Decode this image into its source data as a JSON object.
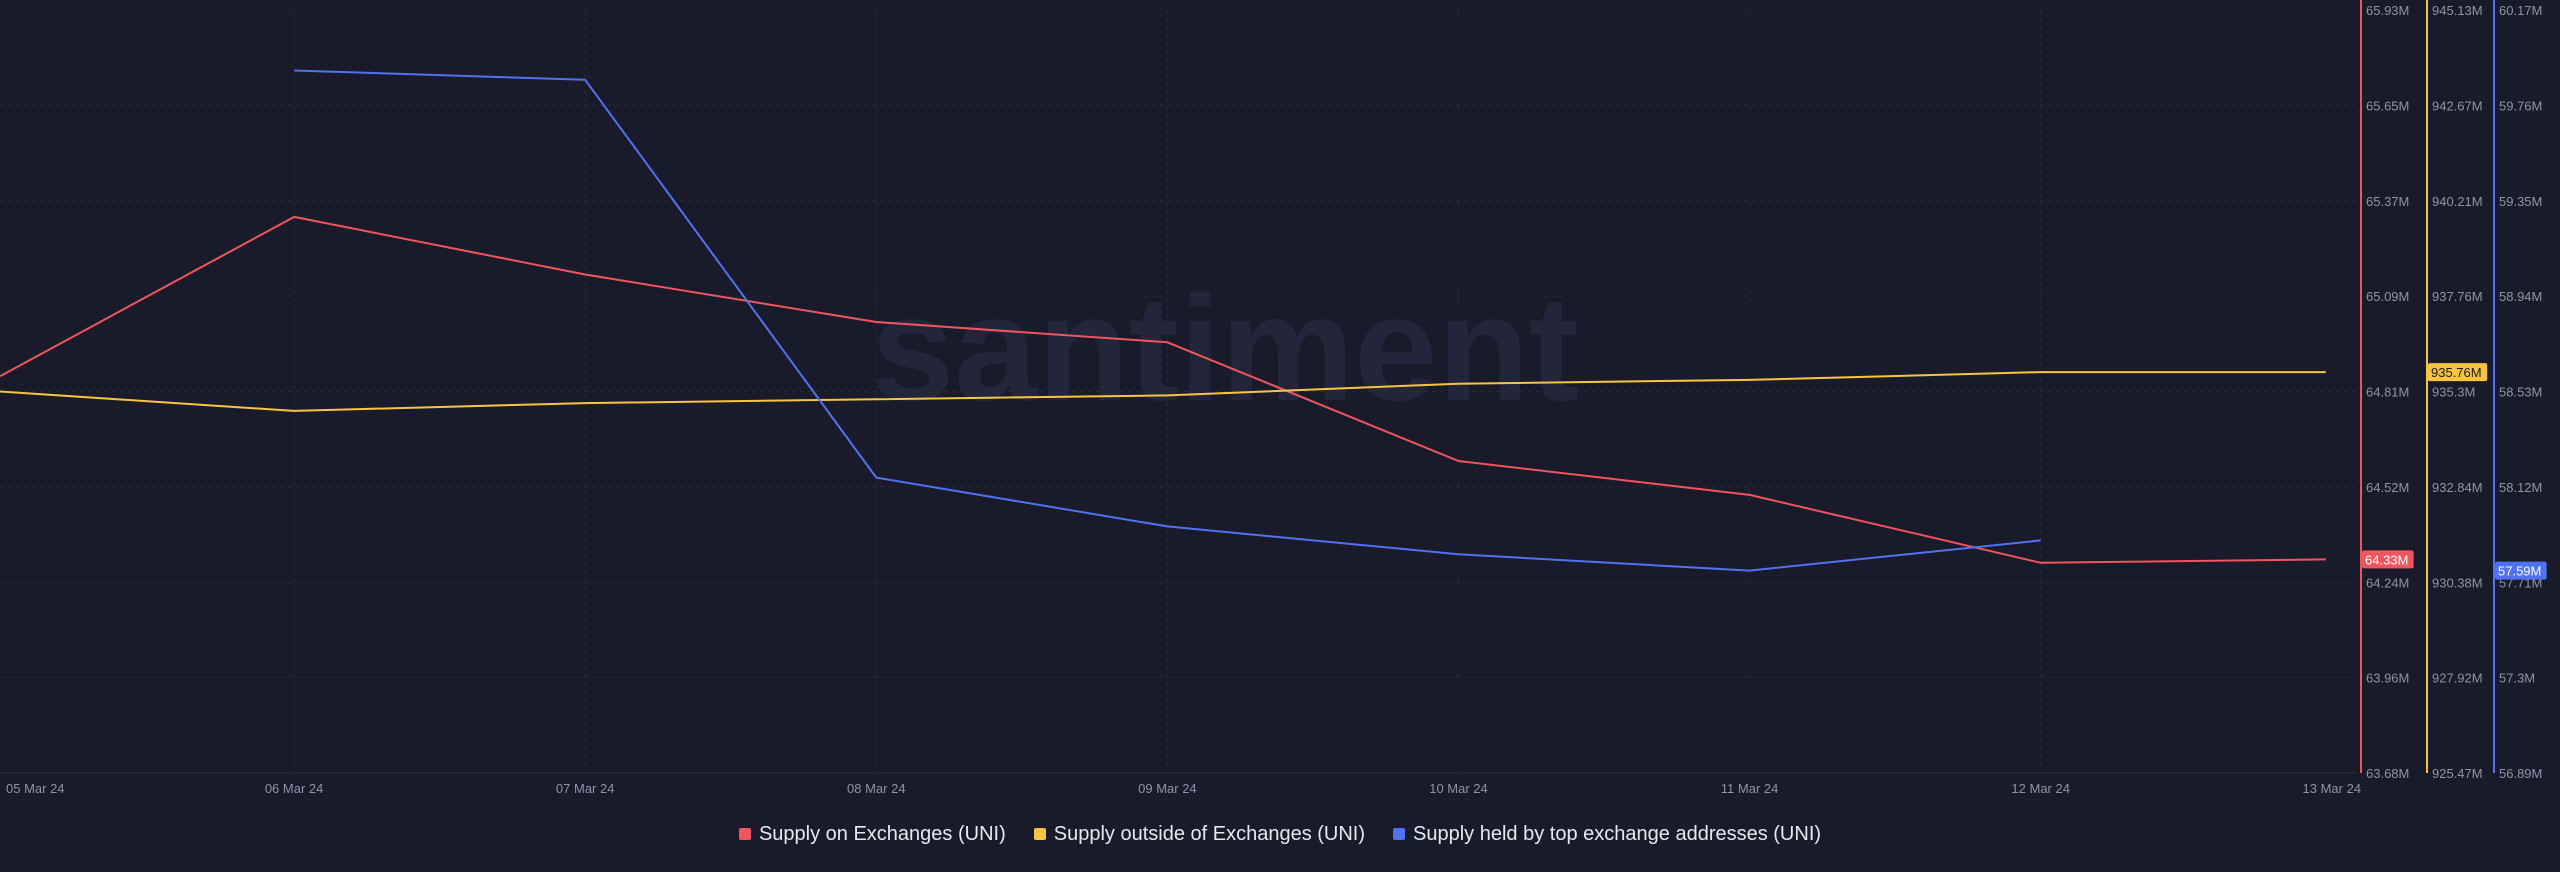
{
  "watermark": "santiment",
  "colors": {
    "background": "#191b2a",
    "grid": "#262a3b",
    "tick_text": "#8e93a8",
    "badge_text_dark": "#1b1b1b",
    "badge_text_light": "#ffffff"
  },
  "chart_data": {
    "type": "line",
    "grid": true,
    "legend_position": "bottom-center",
    "categories": [
      "05 Mar 24",
      "06 Mar 24",
      "07 Mar 24",
      "08 Mar 24",
      "09 Mar 24",
      "10 Mar 24",
      "11 Mar 24",
      "12 Mar 24",
      "13 Mar 24"
    ],
    "axes": [
      {
        "id": "supply_on",
        "color": "#f0555f",
        "ylim": [
          63.68,
          65.93
        ],
        "ticks": [
          "65.93M",
          "65.65M",
          "65.37M",
          "65.09M",
          "64.81M",
          "64.52M",
          "64.24M",
          "63.96M",
          "63.68M"
        ],
        "tick_values": [
          65.93,
          65.65,
          65.37,
          65.09,
          64.81,
          64.52,
          64.24,
          63.96,
          63.68
        ]
      },
      {
        "id": "supply_outside",
        "color": "#f5c542",
        "ylim": [
          925.47,
          945.13
        ],
        "ticks": [
          "945.13M",
          "942.67M",
          "940.21M",
          "937.76M",
          "935.3M",
          "932.84M",
          "930.38M",
          "927.92M",
          "925.47M"
        ],
        "tick_values": [
          945.13,
          942.67,
          940.21,
          937.76,
          935.3,
          932.84,
          930.38,
          927.92,
          925.47
        ]
      },
      {
        "id": "supply_top",
        "color": "#5072f0",
        "ylim": [
          56.89,
          60.17
        ],
        "ticks": [
          "60.17M",
          "59.76M",
          "59.35M",
          "58.94M",
          "58.53M",
          "58.12M",
          "57.71M",
          "57.3M",
          "56.89M"
        ],
        "tick_values": [
          60.17,
          59.76,
          59.35,
          58.94,
          58.53,
          58.12,
          57.71,
          57.3,
          56.89
        ]
      }
    ],
    "series": [
      {
        "name": "Supply on Exchanges (UNI)",
        "axis": 0,
        "color": "#f0555f",
        "x": [
          -0.02,
          1,
          2,
          3,
          4,
          5,
          6,
          7,
          8
        ],
        "values": [
          64.85,
          65.32,
          65.15,
          65.01,
          64.95,
          64.6,
          64.5,
          64.3,
          64.31
        ],
        "last_value_label": "64.33M"
      },
      {
        "name": "Supply outside of Exchanges (UNI)",
        "axis": 1,
        "color": "#f5c542",
        "x": [
          -0.02,
          1,
          2,
          3,
          4,
          5,
          6,
          7,
          8
        ],
        "values": [
          935.3,
          934.8,
          935.0,
          935.1,
          935.2,
          935.5,
          935.6,
          935.8,
          935.8
        ],
        "last_value_label": "935.76M"
      },
      {
        "name": "Supply held by top exchange addresses (UNI)",
        "axis": 2,
        "color": "#5072f0",
        "x": [
          1,
          2,
          3,
          4,
          5,
          6,
          7
        ],
        "values": [
          59.91,
          59.87,
          58.16,
          57.95,
          57.83,
          57.76,
          57.89
        ],
        "last_value_label": "57.59M"
      }
    ],
    "badges": [
      {
        "axis": 0,
        "value": 64.31,
        "label": "64.33M",
        "text_color": "#ffffff"
      },
      {
        "axis": 1,
        "value": 935.8,
        "label": "935.76M",
        "text_color": "#1b1b1b"
      },
      {
        "axis": 2,
        "value": 57.76,
        "label": "57.59M",
        "text_color": "#ffffff"
      }
    ]
  },
  "legend": [
    {
      "label": "Supply on Exchanges (UNI)",
      "color": "#f0555f"
    },
    {
      "label": "Supply outside of Exchanges (UNI)",
      "color": "#f5c542"
    },
    {
      "label": "Supply held by top exchange addresses (UNI)",
      "color": "#5072f0"
    }
  ]
}
